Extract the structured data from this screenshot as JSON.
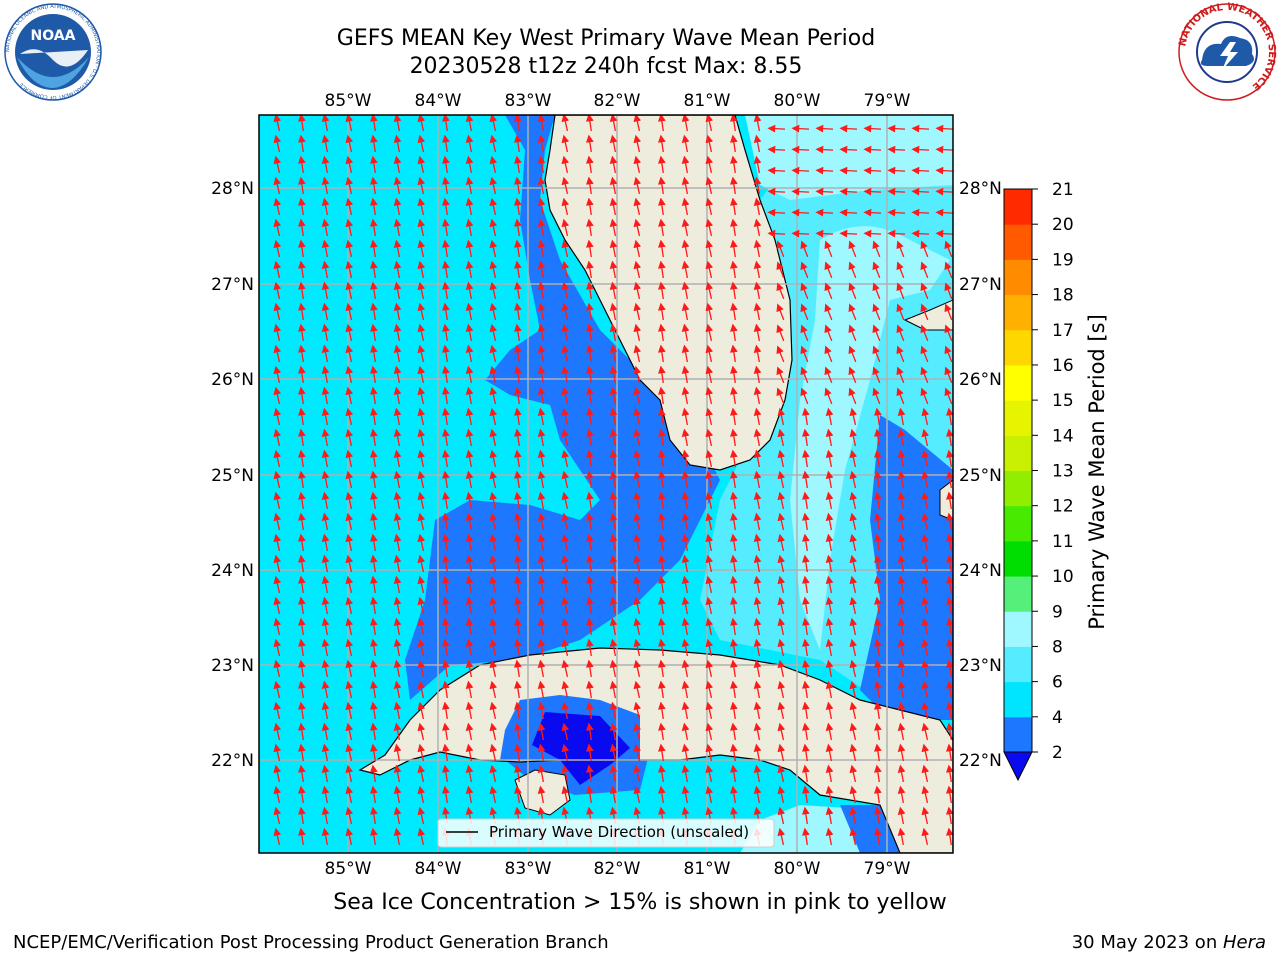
{
  "title": {
    "line1": "GEFS MEAN Key West Primary Wave Mean Period",
    "line2": "20230528 t12z 240h fcst   Max: 8.55"
  },
  "logos": {
    "left": {
      "text": "NOAA",
      "ring_text": "NATIONAL OCEANIC AND ATMOSPHERIC ADMINISTRATION · U.S. DEPARTMENT OF COMMERCE",
      "color": "#1f5aa8"
    },
    "right": {
      "ring_text": "NATIONAL WEATHER SERVICE",
      "color": "#d01c1c"
    }
  },
  "map": {
    "lon_labels": [
      "85°W",
      "84°W",
      "83°W",
      "82°W",
      "81°W",
      "80°W",
      "79°W"
    ],
    "lat_labels": [
      "28°N",
      "27°N",
      "26°N",
      "25°N",
      "24°N",
      "23°N",
      "22°N"
    ],
    "legend_label": "Primary Wave Direction (unscaled)",
    "land_color": "#eeecdc",
    "arrow_color": "#ff1a1a",
    "grid_color": "#b0b0b0"
  },
  "colorbar": {
    "label": "Primary Wave Mean Period [s]",
    "ticks": [
      "2",
      "4",
      "6",
      "8",
      "9",
      "10",
      "11",
      "12",
      "13",
      "14",
      "15",
      "16",
      "17",
      "18",
      "19",
      "20",
      "21"
    ],
    "colors": [
      "#1e78ff",
      "#00e5ff",
      "#56ecff",
      "#9ff8ff",
      "#55f07a",
      "#00dd00",
      "#47ea00",
      "#91ee00",
      "#c8f000",
      "#e6f400",
      "#ffff00",
      "#ffd700",
      "#ffb000",
      "#ff8c00",
      "#ff5a00",
      "#ff2a00"
    ],
    "under_color": "#0a0af0"
  },
  "footer": {
    "center": "Sea Ice Concentration > 15% is shown in pink to yellow",
    "left": "NCEP/EMC/Verification Post Processing Product Generation Branch",
    "right_date": "30 May 2023 on ",
    "right_host": "Hera"
  }
}
